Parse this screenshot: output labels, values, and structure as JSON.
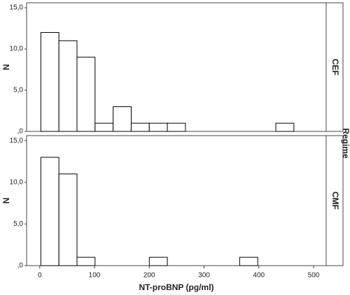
{
  "facet_title": "Regime",
  "chart_data": [
    {
      "type": "histogram",
      "facet": "CEF",
      "y_label": "N",
      "bins": [
        2,
        35,
        68,
        101,
        134,
        167,
        200,
        233,
        266,
        299,
        332,
        365,
        398,
        431,
        464
      ],
      "values": [
        12,
        11,
        9,
        1,
        3,
        1,
        1,
        1,
        0,
        0,
        0,
        0,
        0,
        1
      ],
      "color": "#ffffff",
      "xlim": [
        -24,
        523
      ],
      "ylim": [
        0,
        15.6
      ],
      "yticks": [
        {
          "value": 0,
          "label": ",0"
        },
        {
          "value": 5,
          "label": "5,0"
        },
        {
          "value": 10,
          "label": "10,0"
        },
        {
          "value": 15,
          "label": "15,0"
        }
      ]
    },
    {
      "type": "histogram",
      "facet": "CMF",
      "y_label": "N",
      "x_label": "NT-proBNP (pg/ml)",
      "bins": [
        2,
        35,
        68,
        101,
        134,
        167,
        200,
        233,
        266,
        299,
        332,
        365,
        398,
        431,
        464
      ],
      "values": [
        13,
        11,
        1,
        0,
        0,
        0,
        1,
        0,
        0,
        0,
        0,
        1,
        0,
        0
      ],
      "color": "#ffffff",
      "xlim": [
        -24,
        523
      ],
      "ylim": [
        0,
        15.6
      ],
      "yticks": [
        {
          "value": 0,
          "label": ",0"
        },
        {
          "value": 5,
          "label": "5,0"
        },
        {
          "value": 10,
          "label": "10,0"
        },
        {
          "value": 15,
          "label": "15,0"
        }
      ],
      "xticks": [
        0,
        100,
        200,
        300,
        400,
        500
      ]
    }
  ]
}
